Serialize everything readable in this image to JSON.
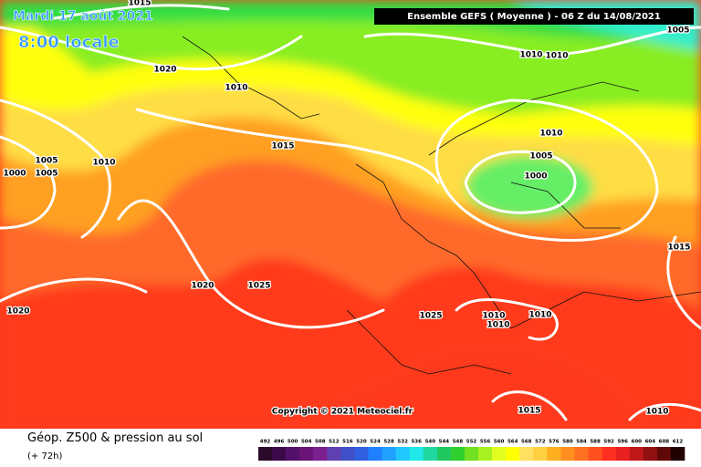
{
  "header": {
    "date": "Mardi 17 août 2021",
    "time": "8:00 locale",
    "model": "Ensemble GEFS  ( Moyenne )  -  06 Z du 14/08/2021"
  },
  "isobar_labels": [
    "1015",
    "1020",
    "1010",
    "1005",
    "1005",
    "1000",
    "1010",
    "1015",
    "1010",
    "1010",
    "1005",
    "1010",
    "1005",
    "1000",
    "1015",
    "1020",
    "1025",
    "1020",
    "1025",
    "1010",
    "1010",
    "1010",
    "1015",
    "1010"
  ],
  "copyright": "Copyright © 2021 Meteociel.fr",
  "footer": {
    "title": "Géop. Z500 & pression au sol",
    "lead": "(+ 72h)"
  },
  "legend": {
    "levels": [
      492,
      496,
      500,
      504,
      508,
      512,
      516,
      520,
      524,
      528,
      532,
      536,
      540,
      544,
      548,
      552,
      556,
      560,
      564,
      568,
      572,
      576,
      580,
      584,
      588,
      592,
      596,
      600,
      604,
      608,
      612
    ],
    "colors": [
      "#2a0a2a",
      "#3c0a4a",
      "#52106a",
      "#6a1478",
      "#7c2090",
      "#6040b0",
      "#4050c8",
      "#3060e0",
      "#2080ff",
      "#20a0ff",
      "#20c8ff",
      "#20e8e8",
      "#20d8a0",
      "#20c860",
      "#30d030",
      "#70e020",
      "#a8f020",
      "#e0ff20",
      "#ffff00",
      "#ffe060",
      "#ffd040",
      "#ffb020",
      "#ff9020",
      "#ff7020",
      "#ff5020",
      "#ff3020",
      "#e82020",
      "#c01818",
      "#901010",
      "#600808",
      "#200000"
    ]
  }
}
